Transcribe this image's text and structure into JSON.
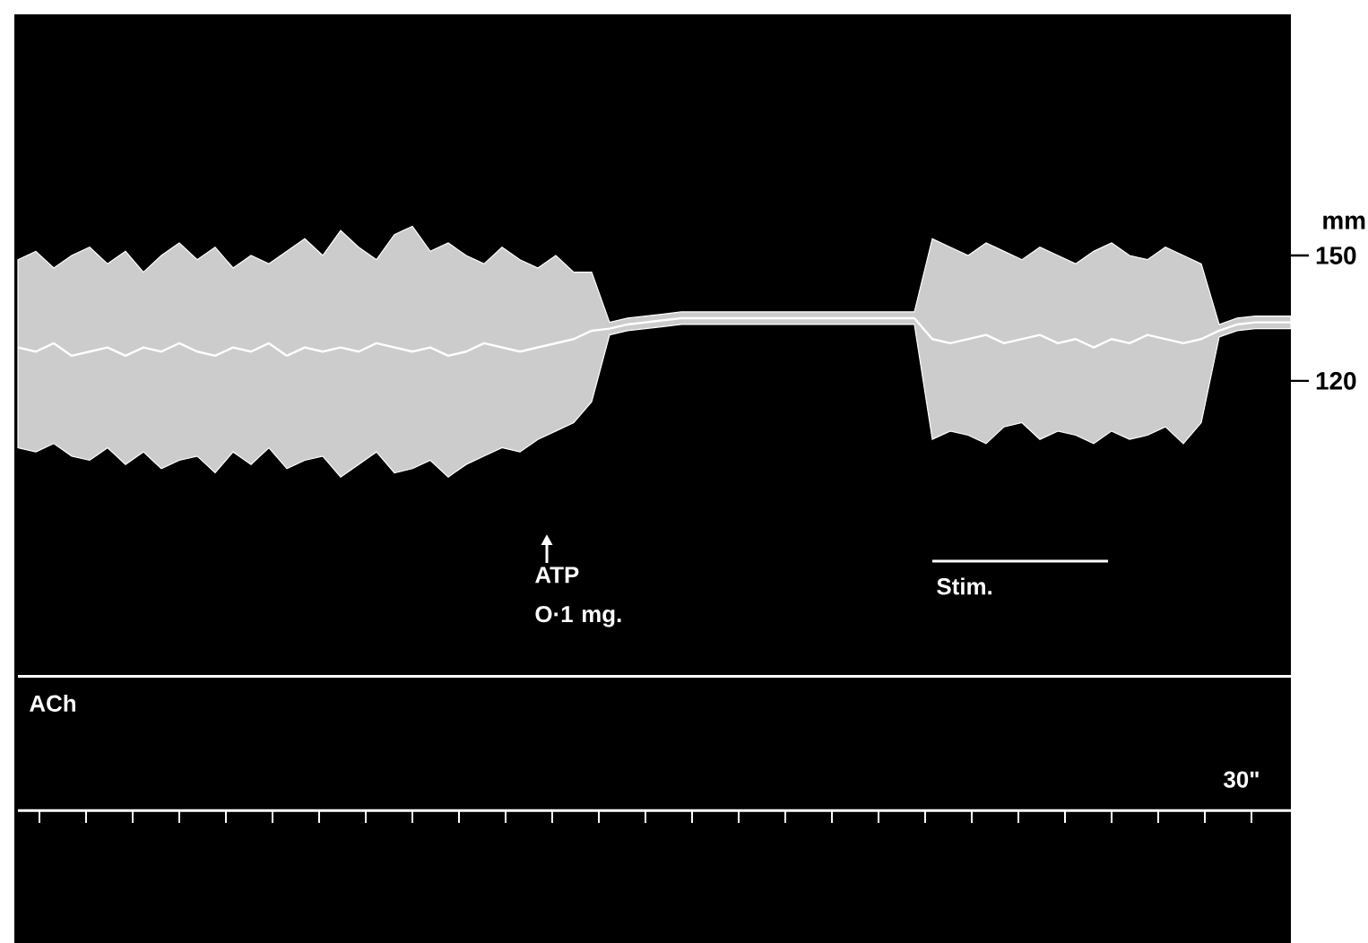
{
  "chart_data": {
    "type": "line",
    "ylabel": "mm",
    "ylim": [
      -14.5,
      207.7
    ],
    "yticks": [
      120,
      150
    ],
    "tick_labels": "y",
    "categories": [
      null,
      null,
      null,
      null,
      null,
      null,
      null,
      null,
      null,
      null,
      null,
      null,
      null,
      null,
      null,
      null,
      null,
      null,
      null,
      null,
      null,
      null,
      null,
      null,
      null,
      null,
      null,
      null,
      null,
      null,
      null,
      null,
      null,
      null,
      null,
      null,
      null,
      null,
      null,
      null,
      null,
      null,
      null,
      null,
      null,
      null,
      null,
      null,
      null,
      null,
      null,
      null,
      null,
      null,
      null,
      null,
      null,
      null,
      null,
      null,
      null,
      null,
      null,
      null,
      null,
      null,
      null,
      null,
      null,
      null,
      null,
      null
    ],
    "series": [
      {
        "color": "#ffffff",
        "values": [
          128,
          127,
          129,
          126,
          127,
          128,
          126,
          128,
          127,
          129,
          127,
          126,
          128,
          127,
          129,
          126,
          128,
          127,
          128,
          127,
          129,
          128,
          127,
          128,
          126,
          127,
          129,
          128,
          127,
          128,
          129,
          130,
          132,
          132.5,
          133.5,
          134,
          134.5,
          135,
          135,
          135,
          135,
          135,
          135,
          135,
          135,
          135,
          135,
          135,
          135,
          135,
          135,
          130,
          129,
          130,
          131,
          129,
          130,
          131,
          129,
          130,
          128,
          130,
          129,
          131,
          130,
          129,
          130,
          132,
          133.5,
          134,
          134,
          134
        ],
        "lower": [
          104,
          103,
          105,
          102,
          101,
          104,
          100,
          103,
          99,
          101,
          102,
          98,
          103,
          100,
          104,
          99,
          101,
          102,
          97,
          100,
          103,
          98,
          99,
          101,
          97,
          100,
          102,
          104,
          103,
          106,
          108,
          110,
          115,
          131,
          132,
          132.5,
          133,
          133.5,
          133.5,
          133.5,
          133.5,
          133.5,
          133.5,
          133.5,
          133.5,
          133.5,
          133.5,
          133.5,
          133.5,
          133.5,
          133.5,
          106,
          108,
          107,
          105,
          109,
          110,
          106,
          108,
          107,
          105,
          108,
          106,
          107,
          109,
          105,
          110,
          130.5,
          132,
          132.5,
          132.5,
          132.5
        ],
        "upper": [
          149,
          151,
          147,
          150,
          152,
          148,
          151,
          146,
          150,
          153,
          149,
          152,
          147,
          150,
          148,
          151,
          154,
          150,
          156,
          152,
          149,
          155,
          157,
          151,
          153,
          150,
          148,
          152,
          149,
          147,
          150,
          146,
          146,
          134,
          135,
          135.5,
          136,
          136.5,
          136.5,
          136.5,
          136.5,
          136.5,
          136.5,
          136.5,
          136.5,
          136.5,
          136.5,
          136.5,
          136.5,
          136.5,
          136.5,
          154,
          152,
          150,
          153,
          151,
          149,
          152,
          150,
          148,
          151,
          153,
          150,
          149,
          152,
          150,
          148,
          133.5,
          135,
          135.5,
          135.5,
          135.5
        ]
      }
    ],
    "ref_lines": [
      {
        "axis": "y",
        "value": 49.3,
        "label": "ACh",
        "color": "#ffffff"
      },
      {
        "axis": "y",
        "value": 17.2,
        "color": "#ffffff"
      }
    ],
    "annotations": [
      "ATP O·1 mg.",
      "Stim.",
      "30\""
    ]
  }
}
